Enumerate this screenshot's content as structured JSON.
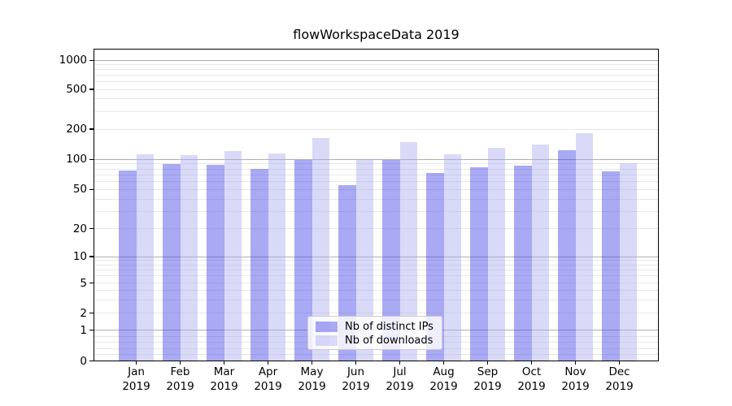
{
  "chart_data": {
    "type": "bar",
    "title": "flowWorkspaceData 2019",
    "categories": [
      "Jan 2019",
      "Feb 2019",
      "Mar 2019",
      "Apr 2019",
      "May 2019",
      "Jun 2019",
      "Jul 2019",
      "Aug 2019",
      "Sep 2019",
      "Oct 2019",
      "Nov 2019",
      "Dec 2019"
    ],
    "series": [
      {
        "name": "Nb of distinct IPs",
        "color": "rgba(64,64,231,0.45)",
        "color_on_white": "#a9a9f4",
        "values": [
          78,
          90,
          88,
          81,
          99,
          55,
          98,
          73,
          84,
          86,
          123,
          76
        ]
      },
      {
        "name": "Nb of downloads",
        "color": "rgba(171,171,239,0.45)",
        "color_on_white": "#d9d9f8",
        "values": [
          113,
          111,
          122,
          115,
          163,
          98,
          148,
          112,
          130,
          141,
          181,
          92
        ]
      }
    ],
    "xlabel": "",
    "ylabel": "",
    "yscale": "symlog",
    "y_ticks": [
      0,
      1,
      2,
      5,
      10,
      20,
      50,
      100,
      200,
      500,
      1000
    ],
    "ylim": [
      0,
      1500
    ],
    "grid": "on",
    "legend_position": "lower center"
  },
  "colors": {
    "background": "#ffffff",
    "axis": "#000000",
    "text": "#000000",
    "major_grid": "#b0b0b0",
    "minor_grid": "#e8e8e8",
    "legend_border": "#cccccc",
    "legend_background": "rgba(255,255,255,0.8)"
  }
}
